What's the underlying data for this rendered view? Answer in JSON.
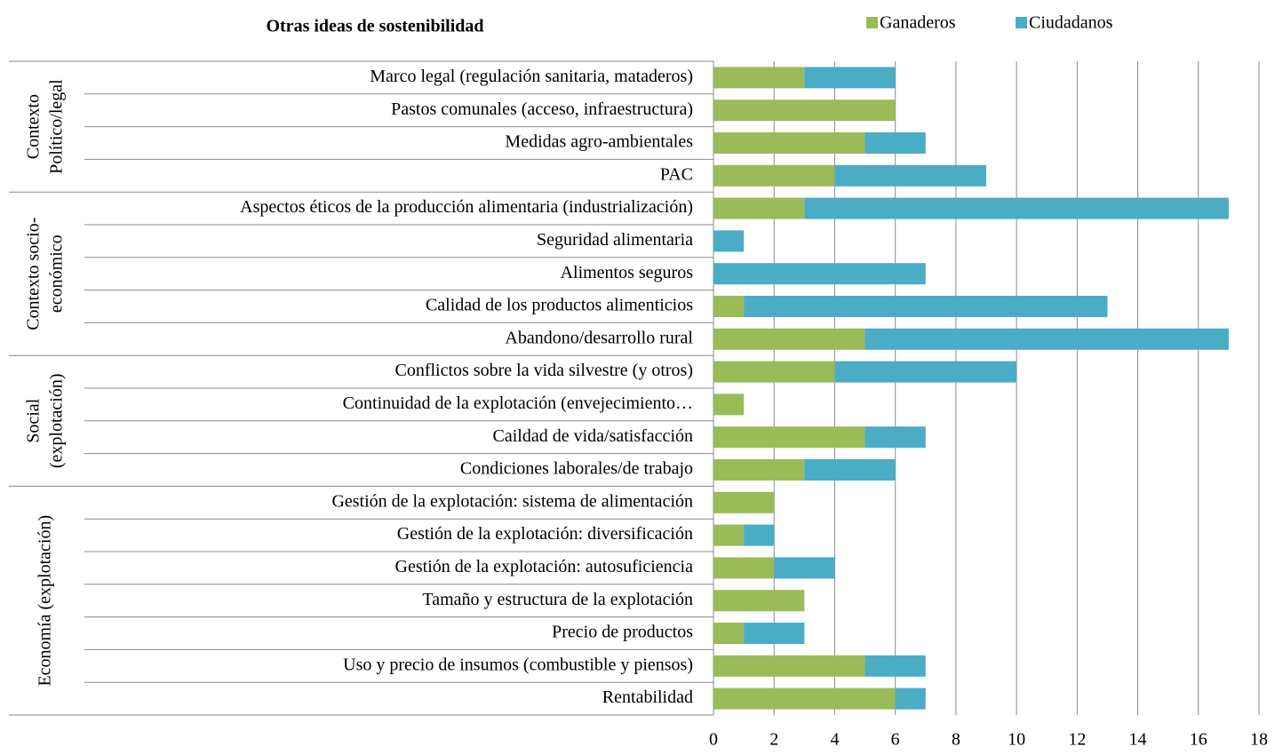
{
  "chart_data": {
    "type": "stacked-bar-horizontal",
    "title": "Otras ideas de sostenibilidad",
    "categories": [
      "Marco legal (regulación sanitaria, mataderos)",
      "Pastos comunales (acceso, infraestructura)",
      "Medidas agro-ambientales",
      "PAC",
      "Aspectos éticos de la producción alimentaria (industrialización)",
      "Seguridad alimentaria",
      "Alimentos seguros",
      "Calidad de los productos alimenticios",
      "Abandono/desarrollo rural",
      "Conflictos sobre la vida silvestre (y otros)",
      "Continuidad de la explotación (envejecimiento…",
      "Caildad de vida/satisfacción",
      "Condiciones laborales/de trabajo",
      "Gestión de la explotación: sistema de alimentación",
      "Gestión de la explotación: diversificación",
      "Gestión de la explotación: autosuficiencia",
      "Tamaño y estructura de la explotación",
      "Precio de productos",
      "Uso y precio de insumos (combustible y piensos)",
      "Rentabilidad"
    ],
    "series": [
      {
        "name": "Ganaderos",
        "color": "#9bbb59",
        "values": [
          3,
          6,
          5,
          4,
          3,
          0,
          0,
          1,
          5,
          4,
          1,
          5,
          3,
          2,
          1,
          2,
          3,
          1,
          5,
          6
        ]
      },
      {
        "name": "Ciudadanos",
        "color": "#4bacc6",
        "values": [
          3,
          0,
          2,
          5,
          14,
          1,
          7,
          12,
          12,
          6,
          0,
          2,
          3,
          0,
          1,
          2,
          0,
          2,
          2,
          1
        ]
      }
    ],
    "groups": [
      {
        "label": [
          "Contexto",
          "Político/legal"
        ],
        "rows": [
          0,
          3
        ]
      },
      {
        "label": [
          "Contexto socio-",
          "económico"
        ],
        "rows": [
          4,
          8
        ]
      },
      {
        "label": [
          "Social",
          "(explotación)"
        ],
        "rows": [
          9,
          12
        ]
      },
      {
        "label": [
          "Economía (explotación)"
        ],
        "rows": [
          13,
          19
        ]
      }
    ],
    "xlim": [
      0,
      18
    ],
    "xticks": [
      0,
      2,
      4,
      6,
      8,
      10,
      12,
      14,
      16,
      18
    ],
    "grid": true
  }
}
